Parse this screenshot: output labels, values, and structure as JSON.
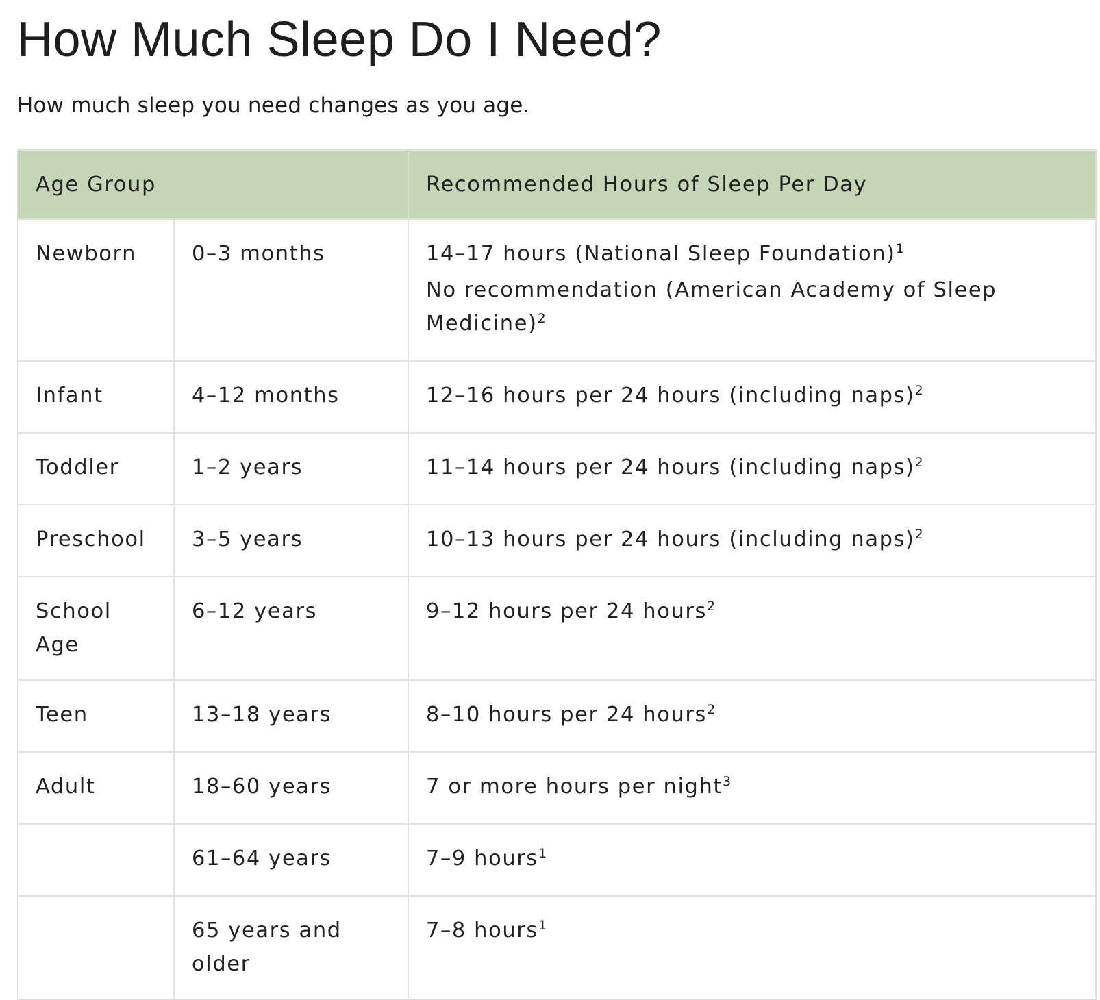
{
  "title": "How Much Sleep Do I Need?",
  "subtitle": "How much sleep you need changes as you age.",
  "table": {
    "headers": {
      "age_group": "Age Group",
      "recommended": "Recommended Hours of Sleep Per Day"
    },
    "rows": [
      {
        "group": "Newborn",
        "age": "0–3 months",
        "rec_lines": [
          {
            "text": "14–17 hours (National Sleep Foundation)",
            "note": "1"
          },
          {
            "text": "No recommendation (American Academy of Sleep Medicine)",
            "note": "2"
          }
        ]
      },
      {
        "group": "Infant",
        "age": "4–12 months",
        "rec_lines": [
          {
            "text": "12–16 hours per 24 hours (including naps)",
            "note": "2"
          }
        ]
      },
      {
        "group": "Toddler",
        "age": "1–2 years",
        "rec_lines": [
          {
            "text": "11–14 hours per 24 hours (including naps)",
            "note": "2"
          }
        ]
      },
      {
        "group": "Preschool",
        "age": "3–5 years",
        "rec_lines": [
          {
            "text": "10–13 hours per 24 hours (including naps)",
            "note": "2"
          }
        ]
      },
      {
        "group": "School Age",
        "age": "6–12 years",
        "rec_lines": [
          {
            "text": "9–12 hours per 24 hours",
            "note": "2"
          }
        ]
      },
      {
        "group": "Teen",
        "age": "13–18 years",
        "rec_lines": [
          {
            "text": "8–10 hours per 24 hours",
            "note": "2"
          }
        ]
      },
      {
        "group": "Adult",
        "age": "18–60 years",
        "rec_lines": [
          {
            "text": "7 or more hours per night",
            "note": "3"
          }
        ]
      },
      {
        "group": "",
        "age": "61–64 years",
        "rec_lines": [
          {
            "text": "7–9 hours",
            "note": "1"
          }
        ]
      },
      {
        "group": "",
        "age": "65 years and older",
        "rec_lines": [
          {
            "text": "7–8 hours",
            "note": "1"
          }
        ]
      }
    ]
  },
  "colors": {
    "header_bg": "#c6d5b5",
    "border": "#e2e2e2",
    "text": "#222222"
  }
}
